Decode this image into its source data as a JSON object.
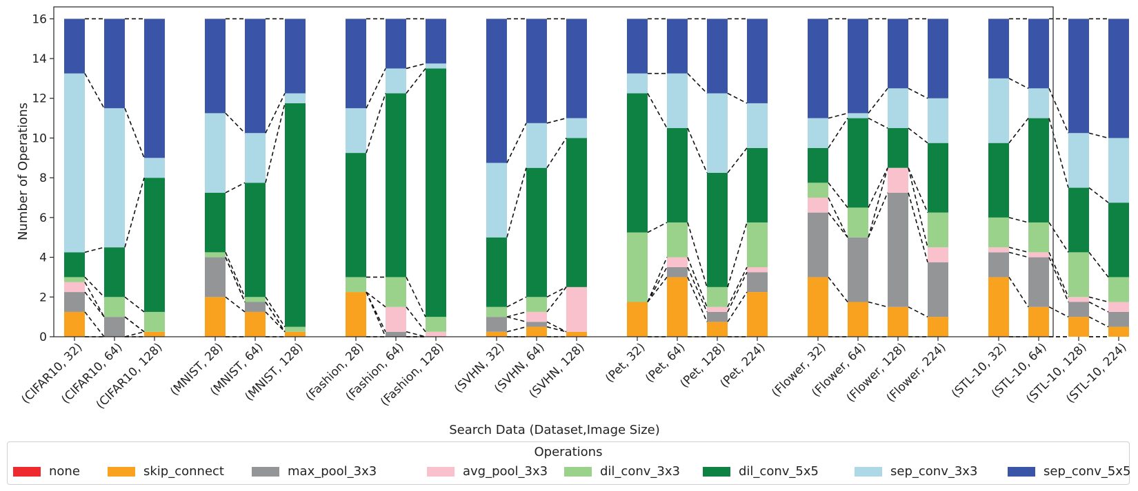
{
  "chart_data": {
    "type": "bar",
    "stacked": true,
    "xlabel": "Search Data (Dataset,Image Size)",
    "ylabel": "Number of Operations",
    "ylim": [
      0,
      16.6
    ],
    "yticks": [
      0,
      2,
      4,
      6,
      8,
      10,
      12,
      14,
      16
    ],
    "grid": false,
    "connector_lines": "dashed",
    "legend": {
      "title": "Operations",
      "placement": "bottom"
    },
    "categories": [
      "(CIFAR10, 32)",
      "(CIFAR10, 64)",
      "(CIFAR10, 128)",
      "(MNIST, 28)",
      "(MNIST, 64)",
      "(MNIST, 128)",
      "(Fashion, 28)",
      "(Fashion, 64)",
      "(Fashion, 128)",
      "(SVHN, 32)",
      "(SVHN, 64)",
      "(SVHN, 128)",
      "(Pet, 32)",
      "(Pet, 64)",
      "(Pet, 128)",
      "(Pet, 224)",
      "(Flower, 32)",
      "(Flower, 64)",
      "(Flower, 128)",
      "(Flower, 224)",
      "(STL-10, 32)",
      "(STL-10, 64)",
      "(STL-10, 128)",
      "(STL-10, 224)"
    ],
    "groups": [
      3,
      3,
      3,
      3,
      4,
      4,
      4
    ],
    "series": [
      {
        "name": "none",
        "color": "#ee2a2f",
        "values": [
          0,
          0,
          0,
          0,
          0,
          0,
          0,
          0,
          0,
          0,
          0,
          0,
          0,
          0,
          0,
          0,
          0,
          0,
          0,
          0,
          0,
          0,
          0,
          0
        ]
      },
      {
        "name": "skip_connect",
        "color": "#f9a21f",
        "values": [
          1.25,
          0,
          0.25,
          2,
          1.25,
          0.25,
          2.25,
          0,
          0,
          0.25,
          0.5,
          0.25,
          1.75,
          3,
          0.75,
          2.25,
          3,
          1.75,
          1.5,
          1,
          3,
          1.5,
          1,
          0.5
        ]
      },
      {
        "name": "max_pool_3x3",
        "color": "#949597",
        "values": [
          1,
          1,
          0,
          2,
          0.5,
          0,
          0,
          0.25,
          0,
          0.75,
          0.25,
          0,
          0,
          0.5,
          0.5,
          1,
          3.25,
          3.25,
          5.75,
          2.75,
          1.25,
          2.5,
          0.75,
          0.75
        ]
      },
      {
        "name": "avg_pool_3x3",
        "color": "#f8c1cb",
        "values": [
          0.5,
          0,
          0,
          0,
          0,
          0,
          0,
          1.25,
          0.25,
          0,
          0.5,
          2.25,
          0,
          0.5,
          0.25,
          0.25,
          0.75,
          0,
          1.25,
          0.75,
          0.25,
          0.25,
          0.25,
          0.5
        ]
      },
      {
        "name": "dil_conv_3x3",
        "color": "#9bd28b",
        "values": [
          0.25,
          1,
          1,
          0.25,
          0.25,
          0.25,
          0.75,
          1.5,
          0.75,
          0.5,
          0.75,
          0,
          3.5,
          1.75,
          1,
          2.25,
          0.75,
          1.5,
          0,
          1.75,
          1.5,
          1.5,
          2.25,
          1.25
        ]
      },
      {
        "name": "dil_conv_5x5",
        "color": "#0d8242",
        "values": [
          1.25,
          2.5,
          6.75,
          3,
          5.75,
          11.25,
          6.25,
          9.25,
          12.5,
          3.5,
          6.5,
          7.5,
          7,
          4.75,
          5.75,
          3.75,
          1.75,
          4.5,
          2,
          3.5,
          3.75,
          5.25,
          3.25,
          3.75
        ]
      },
      {
        "name": "sep_conv_3x3",
        "color": "#add8e6",
        "values": [
          9,
          7,
          1,
          4,
          2.5,
          0.5,
          2.25,
          1.25,
          0.25,
          3.75,
          2.25,
          1,
          1,
          2.75,
          4,
          2.25,
          1.5,
          0.25,
          2,
          2.25,
          3.25,
          1.5,
          2.75,
          3.25
        ]
      },
      {
        "name": "sep_conv_5x5",
        "color": "#3a55a7",
        "values": [
          2.75,
          4.5,
          7,
          4.75,
          5.75,
          3.75,
          4.5,
          2.5,
          2.25,
          7.25,
          5.25,
          5,
          2.75,
          2.75,
          3.75,
          4.25,
          5,
          4.75,
          3.5,
          4,
          3,
          3.5,
          5.75,
          6
        ]
      }
    ]
  }
}
